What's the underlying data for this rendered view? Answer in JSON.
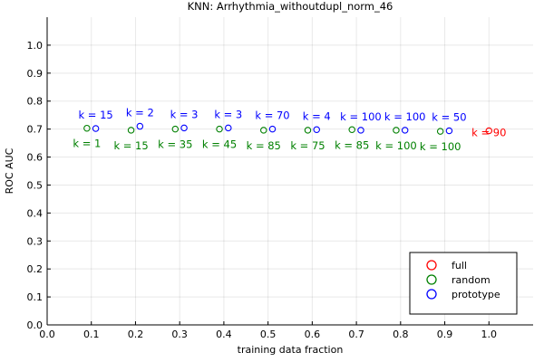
{
  "chart_data": {
    "type": "scatter",
    "title": "KNN: Arrhythmia_withoutdupl_norm_46",
    "xlabel": "training data fraction",
    "ylabel": "ROC AUC",
    "xlim": [
      0.0,
      1.1
    ],
    "ylim": [
      0.0,
      1.1
    ],
    "xticks": [
      "0.0",
      "0.1",
      "0.2",
      "0.3",
      "0.4",
      "0.5",
      "0.6",
      "0.7",
      "0.8",
      "0.9",
      "1.0"
    ],
    "yticks": [
      "0.0",
      "0.1",
      "0.2",
      "0.3",
      "0.4",
      "0.5",
      "0.6",
      "0.7",
      "0.8",
      "0.9",
      "1.0"
    ],
    "grid": true,
    "legend_position": "bottom-right",
    "series": [
      {
        "name": "full",
        "color": "#ff0000",
        "marker": "open-circle",
        "label_position": "inline",
        "points": [
          {
            "x": 1.0,
            "y": 0.694,
            "label": "k = 90"
          }
        ]
      },
      {
        "name": "random",
        "color": "#008000",
        "marker": "open-circle",
        "label_position": "below",
        "points": [
          {
            "x": 0.09,
            "y": 0.703,
            "label": "k = 1"
          },
          {
            "x": 0.19,
            "y": 0.696,
            "label": "k = 15"
          },
          {
            "x": 0.29,
            "y": 0.7,
            "label": "k = 35"
          },
          {
            "x": 0.39,
            "y": 0.7,
            "label": "k = 45"
          },
          {
            "x": 0.49,
            "y": 0.696,
            "label": "k = 85"
          },
          {
            "x": 0.59,
            "y": 0.696,
            "label": "k = 75"
          },
          {
            "x": 0.69,
            "y": 0.698,
            "label": "k = 85"
          },
          {
            "x": 0.79,
            "y": 0.696,
            "label": "k = 100"
          },
          {
            "x": 0.89,
            "y": 0.692,
            "label": "k = 100"
          }
        ]
      },
      {
        "name": "prototype",
        "color": "#0000ff",
        "marker": "open-circle",
        "label_position": "above",
        "points": [
          {
            "x": 0.11,
            "y": 0.702,
            "label": "k = 15"
          },
          {
            "x": 0.21,
            "y": 0.71,
            "label": "k = 2"
          },
          {
            "x": 0.31,
            "y": 0.704,
            "label": "k = 3"
          },
          {
            "x": 0.41,
            "y": 0.704,
            "label": "k = 3"
          },
          {
            "x": 0.51,
            "y": 0.7,
            "label": "k = 70"
          },
          {
            "x": 0.61,
            "y": 0.698,
            "label": "k = 4"
          },
          {
            "x": 0.71,
            "y": 0.696,
            "label": "k = 100"
          },
          {
            "x": 0.81,
            "y": 0.696,
            "label": "k = 100"
          },
          {
            "x": 0.91,
            "y": 0.694,
            "label": "k = 50"
          }
        ]
      }
    ]
  }
}
